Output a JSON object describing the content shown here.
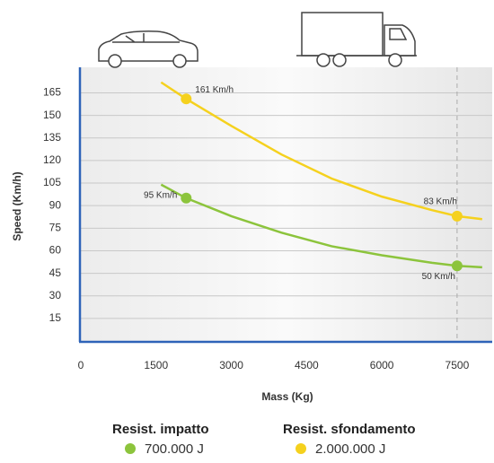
{
  "chart_data": {
    "type": "line",
    "x_label": "Mass (Kg)",
    "y_label": "Speed (Km/h)",
    "xlim": [
      0,
      8200
    ],
    "ylim": [
      0,
      182
    ],
    "xticks": [
      0,
      1500,
      3000,
      4500,
      6000,
      7500
    ],
    "yticks": [
      15,
      30,
      45,
      60,
      75,
      90,
      105,
      120,
      135,
      150,
      165
    ],
    "grid": true,
    "reference_x": 7500,
    "series": [
      {
        "name": "Resist. impatto",
        "energy": "700.000 J",
        "color": "#8cc43c",
        "x": [
          1600,
          2100,
          3000,
          4000,
          5000,
          6000,
          7000,
          7500,
          8000
        ],
        "y": [
          104,
          95,
          83,
          72,
          63,
          57,
          52,
          50,
          49
        ],
        "markers": [
          {
            "x": 2100,
            "y": 95,
            "label": "95 Km/h"
          },
          {
            "x": 7500,
            "y": 50,
            "label": "50 Km/h"
          }
        ]
      },
      {
        "name": "Resist. sfondamento",
        "energy": "2.000.000 J",
        "color": "#f5d11e",
        "x": [
          1600,
          2100,
          3000,
          4000,
          5000,
          6000,
          7000,
          7500,
          8000
        ],
        "y": [
          172,
          161,
          143,
          124,
          108,
          96,
          87,
          83,
          81
        ],
        "markers": [
          {
            "x": 2100,
            "y": 161,
            "label": "161 Km/h"
          },
          {
            "x": 7500,
            "y": 83,
            "label": "83 Km/h"
          }
        ]
      }
    ]
  }
}
